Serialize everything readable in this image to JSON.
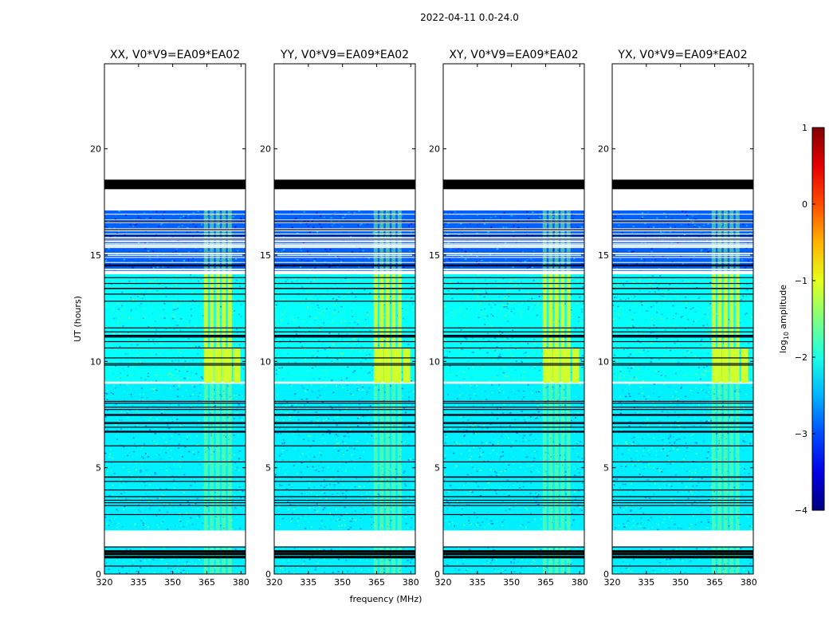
{
  "chart_data": {
    "type": "heatmap",
    "suptitle": "2022-04-11 0.0-24.0",
    "xlabel": "frequency (MHz)",
    "ylabel": "UT (hours)",
    "xlim": [
      320,
      382
    ],
    "ylim": [
      0,
      24
    ],
    "xticks": [
      320,
      335,
      350,
      365,
      380
    ],
    "yticks": [
      0,
      5,
      10,
      15,
      20
    ],
    "panels": [
      {
        "title": "XX, V0*V9=EA09*EA02",
        "polarization": "XX"
      },
      {
        "title": "YY, V0*V9=EA09*EA02",
        "polarization": "YY"
      },
      {
        "title": "XY, V0*V9=EA09*EA02",
        "polarization": "XY"
      },
      {
        "title": "YX, V0*V9=EA09*EA02",
        "polarization": "YX"
      }
    ],
    "colorbar": {
      "label": "log10 amplitude",
      "label_main": "log",
      "label_sub": "10",
      "label_tail": " amplitude",
      "vmin": -4,
      "vmax": 1,
      "ticks": [
        1,
        0,
        -1,
        -2,
        -3,
        -4
      ],
      "tick_labels": [
        "1",
        "0",
        "−1",
        "−2",
        "−3",
        "−4"
      ],
      "colormap": "jet"
    },
    "data_segments_hours": [
      {
        "start": 0.0,
        "end": 1.3,
        "log_amp": -2.2
      },
      {
        "start": 2.05,
        "end": 8.95,
        "log_amp": -2.2
      },
      {
        "start": 9.05,
        "end": 14.1,
        "log_amp": -2.1
      },
      {
        "start": 14.25,
        "end": 17.1,
        "log_amp": -2.9
      }
    ],
    "flagged_block_hours": [
      18.1,
      18.55
    ],
    "rfi_band_mhz": [
      363,
      381
    ],
    "rfi_log_amp": -1.4,
    "colors": {
      "flag": "#000000",
      "axis": "#000000",
      "background": "#ffffff"
    }
  }
}
